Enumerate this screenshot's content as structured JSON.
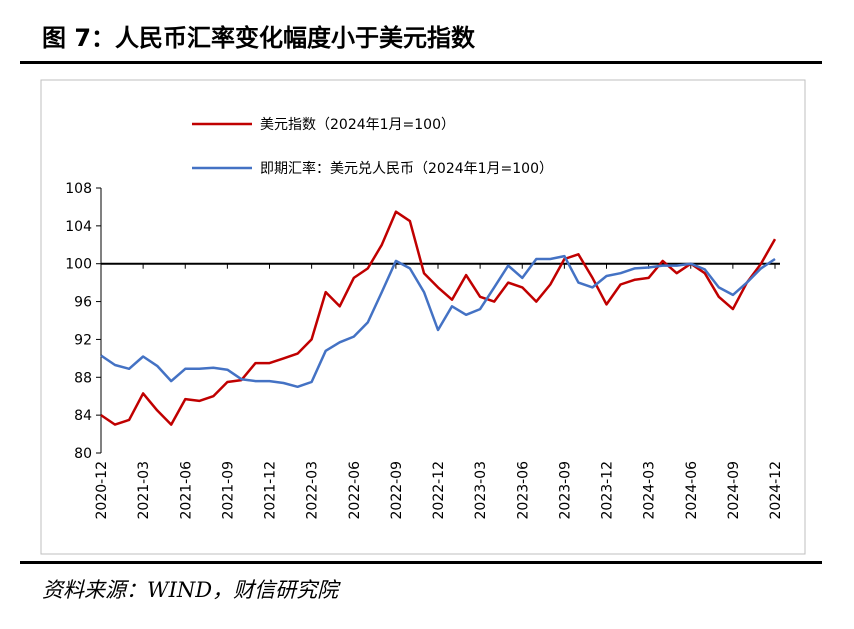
{
  "chart_data": {
    "type": "line",
    "title": "图 7：人民币汇率变化幅度小于美元指数",
    "categories": [
      "2020-12",
      null,
      null,
      "2021-03",
      null,
      null,
      "2021-06",
      null,
      null,
      "2021-09",
      null,
      null,
      "2021-12",
      null,
      null,
      "2022-03",
      null,
      null,
      "2022-06",
      null,
      null,
      "2022-09",
      null,
      null,
      "2022-12",
      null,
      null,
      "2023-03",
      null,
      null,
      "2023-06",
      null,
      null,
      "2023-09",
      null,
      null,
      "2023-12",
      null,
      null,
      "2024-03",
      null,
      null,
      "2024-06",
      null,
      null,
      "2024-09",
      null,
      null,
      "2024-12"
    ],
    "series": [
      {
        "name": "美元指数（2024年1月=100）",
        "color": "#c00000",
        "values": [
          84,
          83,
          83.5,
          86.3,
          84.5,
          83,
          85.7,
          85.5,
          86,
          87.5,
          87.7,
          89.5,
          89.5,
          90,
          90.5,
          92,
          97,
          95.5,
          98.5,
          99.5,
          102,
          105.5,
          104.5,
          99,
          97.5,
          96.2,
          98.8,
          96.5,
          96,
          98,
          97.5,
          96,
          97.8,
          100.5,
          101,
          98.5,
          95.7,
          97.8,
          98.3,
          98.5,
          100.3,
          99,
          100,
          99,
          96.5,
          95.2,
          98,
          100,
          102.6
        ]
      },
      {
        "name": "即期汇率：美元兑人民币（2024年1月=100）",
        "color": "#4472c4",
        "values": [
          90.3,
          89.3,
          88.9,
          90.2,
          89.2,
          87.6,
          88.9,
          88.9,
          89,
          88.8,
          87.8,
          87.6,
          87.6,
          87.4,
          87,
          87.5,
          90.8,
          91.7,
          92.3,
          93.8,
          97,
          100.3,
          99.5,
          97,
          93,
          95.5,
          94.6,
          95.2,
          97.5,
          99.8,
          98.5,
          100.5,
          100.5,
          100.8,
          98,
          97.5,
          98.7,
          99,
          99.5,
          99.6,
          99.8,
          99.8,
          100,
          99.4,
          97.5,
          96.7,
          98,
          99.5,
          100.5
        ]
      }
    ],
    "ylim": [
      80,
      108
    ],
    "yticks": [
      80,
      84,
      88,
      92,
      96,
      100,
      104,
      108
    ],
    "x_axis_at": 100
  },
  "source": "资料来源：WIND，财信研究院"
}
